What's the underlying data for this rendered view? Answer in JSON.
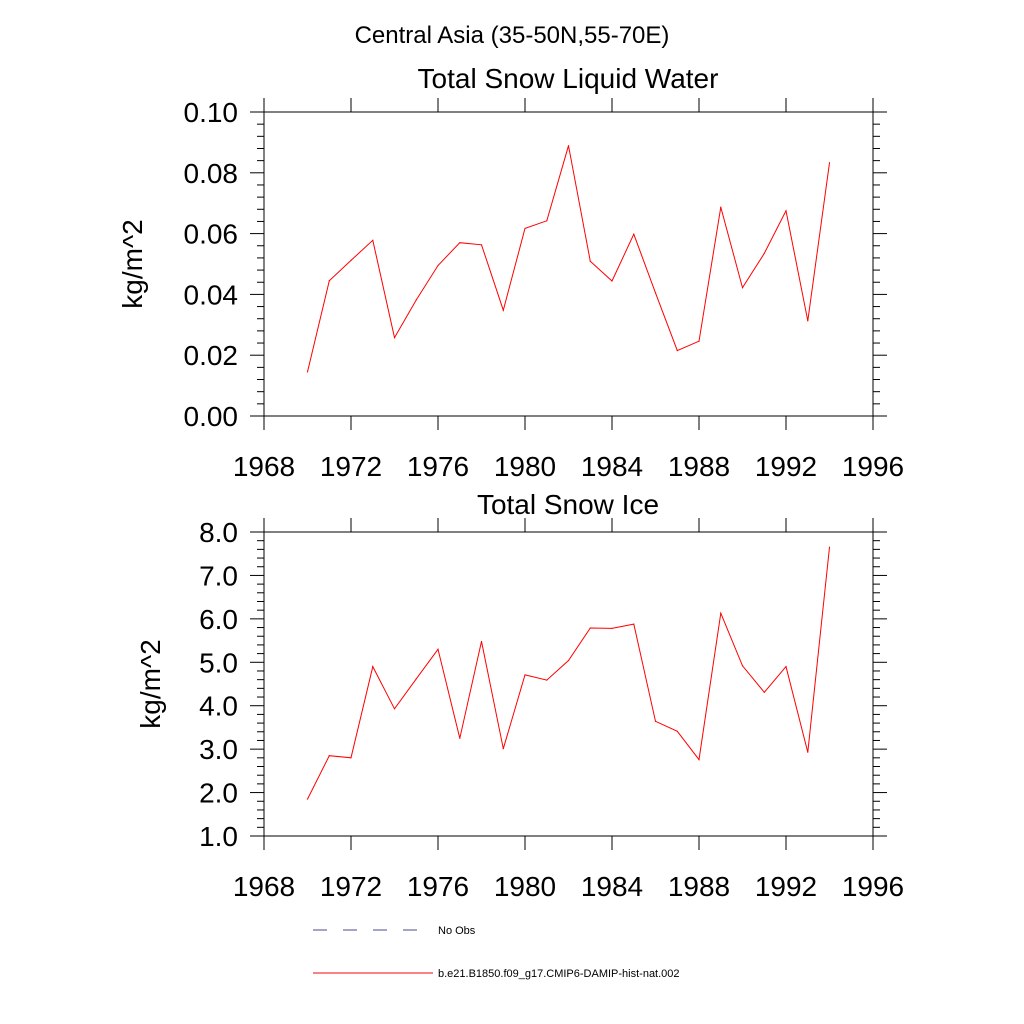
{
  "figure": {
    "suptitle": "Central Asia (35-50N,55-70E)"
  },
  "chart_data": [
    {
      "type": "line",
      "title": "Total Snow Liquid Water",
      "xlabel": "",
      "ylabel": "kg/m^2",
      "xlim": [
        1968,
        1996
      ],
      "ylim": [
        0.0,
        0.1
      ],
      "xticks": [
        1968,
        1972,
        1976,
        1980,
        1984,
        1988,
        1992,
        1996
      ],
      "yticks": [
        "0.00",
        "0.02",
        "0.04",
        "0.06",
        "0.08",
        "0.10"
      ],
      "ytick_values": [
        0.0,
        0.02,
        0.04,
        0.06,
        0.08,
        0.1
      ],
      "grid": false,
      "series": [
        {
          "name": "b.e21.B1850.f09_g17.CMIP6-DAMIP-hist-nat.002",
          "color": "#ff0000",
          "x": [
            1970,
            1971,
            1972,
            1973,
            1974,
            1975,
            1976,
            1977,
            1978,
            1979,
            1980,
            1981,
            1982,
            1983,
            1984,
            1985,
            1986,
            1987,
            1988,
            1989,
            1990,
            1991,
            1992,
            1993,
            1994
          ],
          "y": [
            0.0145,
            0.0445,
            0.0512,
            0.0578,
            0.0258,
            0.0382,
            0.0495,
            0.057,
            0.0563,
            0.0348,
            0.0617,
            0.0642,
            0.0889,
            0.0509,
            0.0444,
            0.0598,
            0.0405,
            0.0215,
            0.0246,
            0.0687,
            0.0422,
            0.0535,
            0.0675,
            0.0313,
            0.0833
          ]
        }
      ]
    },
    {
      "type": "line",
      "title": "Total Snow Ice",
      "xlabel": "",
      "ylabel": "kg/m^2",
      "xlim": [
        1968,
        1996
      ],
      "ylim": [
        1.0,
        8.0
      ],
      "xticks": [
        1968,
        1972,
        1976,
        1980,
        1984,
        1988,
        1992,
        1996
      ],
      "yticks": [
        "1.0",
        "2.0",
        "3.0",
        "4.0",
        "5.0",
        "6.0",
        "7.0",
        "8.0"
      ],
      "ytick_values": [
        1.0,
        2.0,
        3.0,
        4.0,
        5.0,
        6.0,
        7.0,
        8.0
      ],
      "grid": false,
      "series": [
        {
          "name": "b.e21.B1850.f09_g17.CMIP6-DAMIP-hist-nat.002",
          "color": "#ff0000",
          "x": [
            1970,
            1971,
            1972,
            1973,
            1974,
            1975,
            1976,
            1977,
            1978,
            1979,
            1980,
            1981,
            1982,
            1983,
            1984,
            1985,
            1986,
            1987,
            1988,
            1989,
            1990,
            1991,
            1992,
            1993,
            1994
          ],
          "y": [
            1.85,
            2.85,
            2.8,
            4.9,
            3.93,
            4.62,
            5.3,
            3.25,
            5.48,
            3.01,
            4.71,
            4.59,
            5.04,
            5.79,
            5.78,
            5.88,
            3.64,
            3.41,
            2.76,
            6.13,
            4.92,
            4.31,
            4.9,
            2.93,
            7.65
          ]
        }
      ]
    }
  ],
  "legend": {
    "placement": "bottom-center",
    "items": [
      {
        "label": "No Obs",
        "style": "dashed",
        "color": "#4a4a8a"
      },
      {
        "label": "b.e21.B1850.f09_g17.CMIP6-DAMIP-hist-nat.002",
        "style": "solid",
        "color": "#ff0000"
      }
    ]
  }
}
